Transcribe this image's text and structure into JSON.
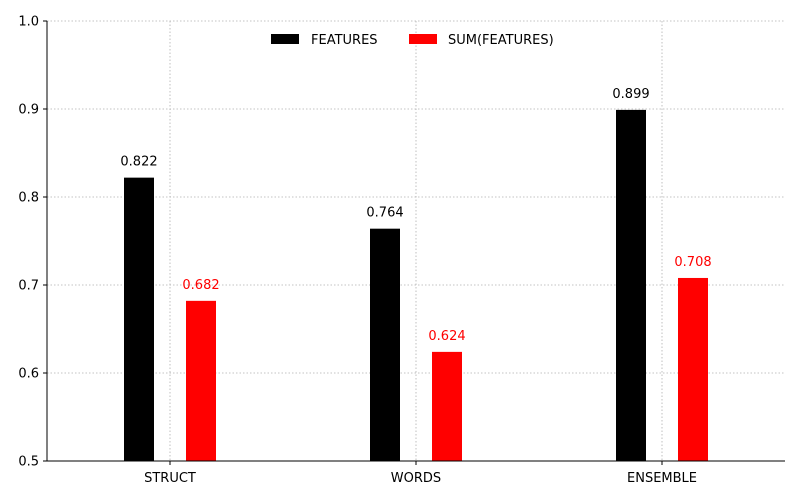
{
  "chart_data": {
    "type": "bar",
    "categories": [
      "STRUCT",
      "WORDS",
      "ENSEMBLE"
    ],
    "series": [
      {
        "name": "FEATURES",
        "values": [
          0.822,
          0.764,
          0.899
        ],
        "color": "#000000",
        "label_color": "#000000"
      },
      {
        "name": "SUM(FEATURES)",
        "values": [
          0.682,
          0.624,
          0.708
        ],
        "color": "#ff0000",
        "label_color": "#ff0000"
      }
    ],
    "title": "",
    "xlabel": "",
    "ylabel": "",
    "ylim": [
      0.5,
      1.0
    ],
    "yticks": [
      0.5,
      0.6,
      0.7,
      0.8,
      0.9,
      1.0
    ],
    "ytick_labels": [
      "0.5",
      "0.6",
      "0.7",
      "0.8",
      "0.9",
      "1.0"
    ],
    "grid": true,
    "legend_position": "top-center"
  }
}
